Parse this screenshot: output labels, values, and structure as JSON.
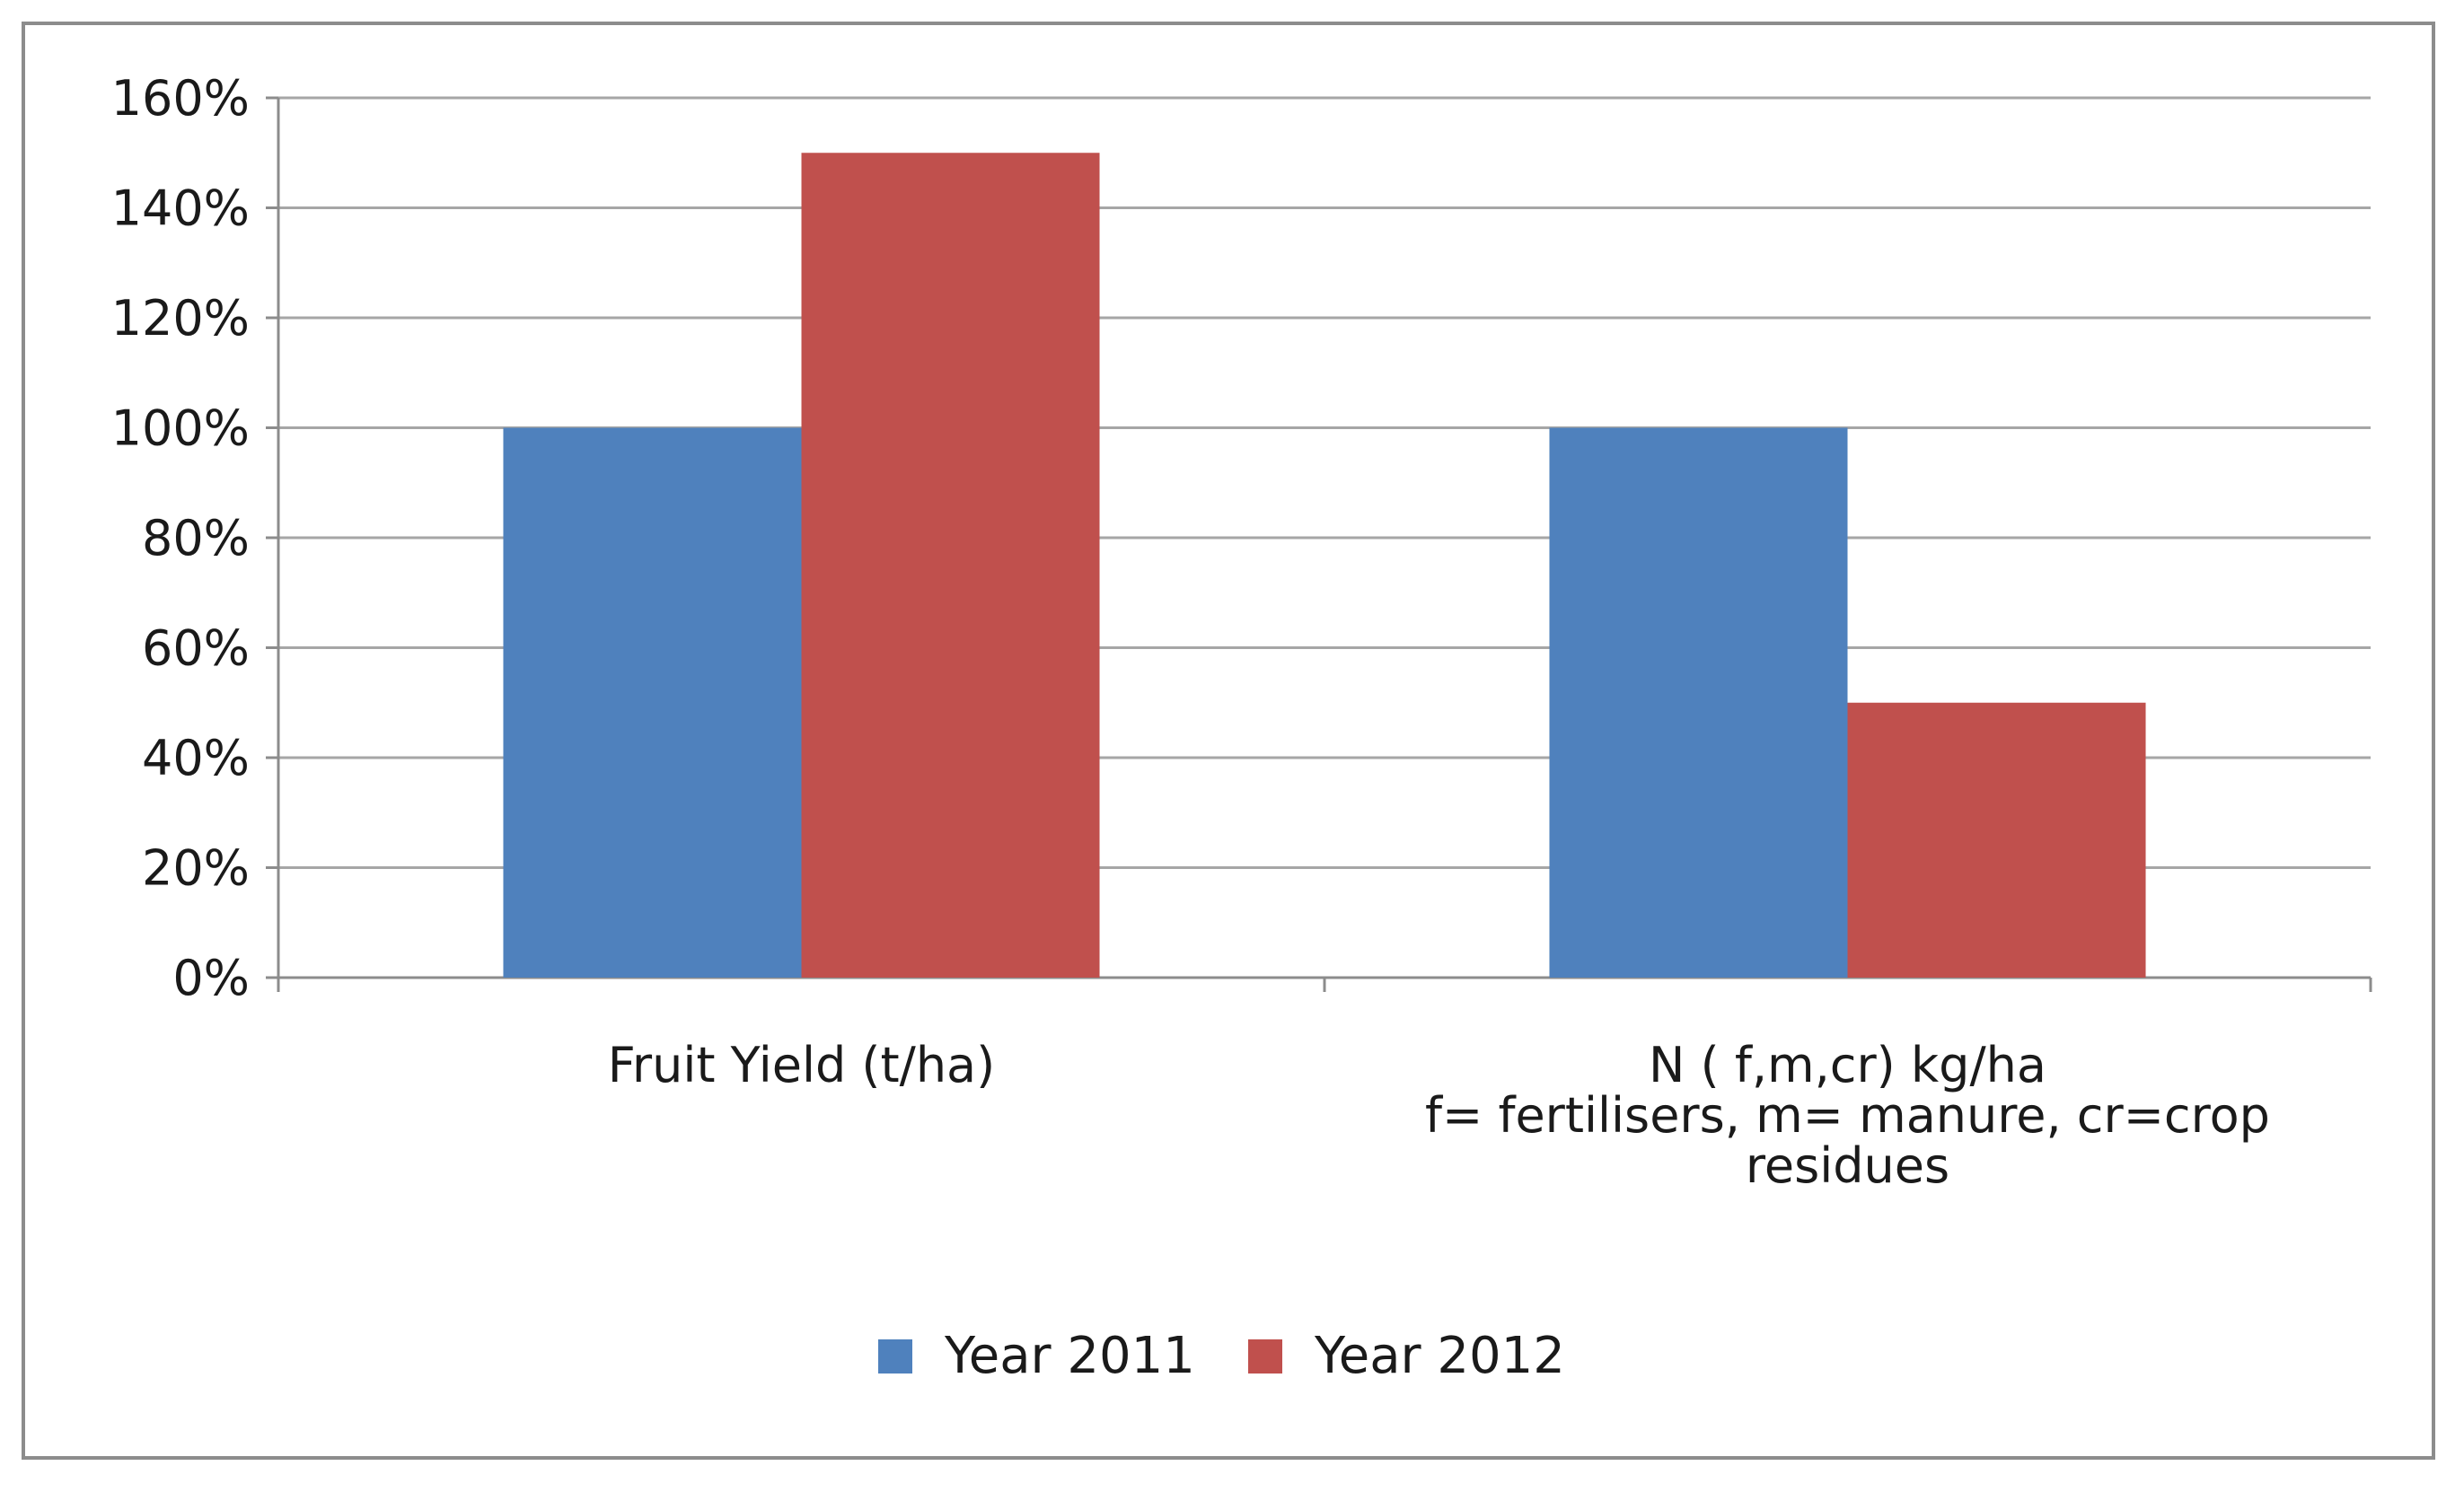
{
  "chart_data": {
    "type": "bar",
    "title": "",
    "xlabel": "",
    "ylabel": "",
    "ylim": [
      0,
      160
    ],
    "y_ticks": [
      0,
      20,
      40,
      60,
      80,
      100,
      120,
      140,
      160
    ],
    "y_tick_labels": [
      "0%",
      "20%",
      "40%",
      "60%",
      "80%",
      "100%",
      "120%",
      "140%",
      "160%"
    ],
    "grid": true,
    "legend_position": "bottom",
    "categories": [
      [
        "Fruit Yield (t/ha)"
      ],
      [
        "N ( f,m,cr) kg/ha",
        "f= fertilisers, m= manure, cr=crop",
        "residues"
      ]
    ],
    "series": [
      {
        "name": "Year 2011",
        "color": "#4f81bd",
        "values": [
          100,
          100
        ]
      },
      {
        "name": "Year 2012",
        "color": "#c0504d",
        "values": [
          150,
          50
        ]
      }
    ]
  },
  "colors": {
    "gridline": "#a6a6a6",
    "axis": "#8c8c8c",
    "frame": "#8c8c8c"
  }
}
